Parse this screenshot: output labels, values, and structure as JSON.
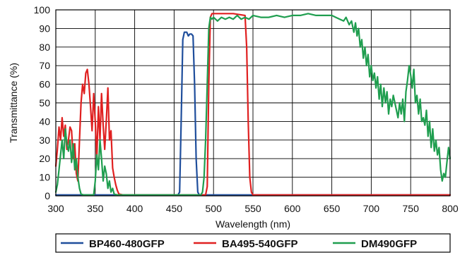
{
  "chart_data": {
    "type": "line",
    "title": "",
    "xlabel": "Wavelength (nm)",
    "ylabel": "Transmittance (%)",
    "xlim": [
      300,
      800
    ],
    "ylim": [
      0,
      100
    ],
    "x_ticks": [
      300,
      350,
      400,
      450,
      500,
      550,
      600,
      650,
      700,
      750,
      800
    ],
    "y_ticks": [
      0,
      10,
      20,
      30,
      40,
      50,
      60,
      70,
      80,
      90,
      100
    ],
    "grid": true,
    "legend_position": "bottom",
    "series": [
      {
        "name": "BP460-480GFP",
        "color": "#1f4e9c",
        "points": [
          [
            300,
            0.5
          ],
          [
            400,
            0.5
          ],
          [
            455,
            0.5
          ],
          [
            457,
            2
          ],
          [
            459,
            40
          ],
          [
            461,
            84
          ],
          [
            463,
            88
          ],
          [
            466,
            88
          ],
          [
            468,
            86
          ],
          [
            470,
            87
          ],
          [
            472,
            87
          ],
          [
            474,
            86
          ],
          [
            476,
            60
          ],
          [
            478,
            20
          ],
          [
            480,
            2
          ],
          [
            482,
            0.5
          ],
          [
            800,
            0.5
          ]
        ]
      },
      {
        "name": "BA495-540GFP",
        "color": "#e02020",
        "points": [
          [
            300,
            16
          ],
          [
            302,
            25
          ],
          [
            304,
            37
          ],
          [
            306,
            30
          ],
          [
            308,
            42
          ],
          [
            310,
            32
          ],
          [
            312,
            38
          ],
          [
            314,
            25
          ],
          [
            316,
            30
          ],
          [
            318,
            37
          ],
          [
            320,
            35
          ],
          [
            322,
            20
          ],
          [
            324,
            28
          ],
          [
            326,
            12
          ],
          [
            328,
            8
          ],
          [
            330,
            30
          ],
          [
            332,
            50
          ],
          [
            334,
            60
          ],
          [
            336,
            55
          ],
          [
            338,
            66
          ],
          [
            340,
            68
          ],
          [
            342,
            60
          ],
          [
            344,
            48
          ],
          [
            346,
            35
          ],
          [
            348,
            55
          ],
          [
            350,
            40
          ],
          [
            352,
            20
          ],
          [
            354,
            48
          ],
          [
            356,
            30
          ],
          [
            358,
            55
          ],
          [
            360,
            38
          ],
          [
            362,
            25
          ],
          [
            364,
            40
          ],
          [
            366,
            58
          ],
          [
            368,
            30
          ],
          [
            370,
            35
          ],
          [
            372,
            15
          ],
          [
            374,
            10
          ],
          [
            376,
            6
          ],
          [
            378,
            3
          ],
          [
            380,
            1
          ],
          [
            385,
            0.5
          ],
          [
            490,
            0.5
          ],
          [
            492,
            5
          ],
          [
            494,
            60
          ],
          [
            496,
            96
          ],
          [
            498,
            98
          ],
          [
            510,
            98
          ],
          [
            525,
            98
          ],
          [
            540,
            97
          ],
          [
            542,
            80
          ],
          [
            544,
            40
          ],
          [
            546,
            10
          ],
          [
            548,
            2
          ],
          [
            550,
            0.5
          ],
          [
            800,
            0.5
          ]
        ]
      },
      {
        "name": "DM490GFP",
        "color": "#1f9e4f",
        "points": [
          [
            300,
            2
          ],
          [
            302,
            6
          ],
          [
            304,
            14
          ],
          [
            306,
            22
          ],
          [
            308,
            30
          ],
          [
            310,
            20
          ],
          [
            312,
            36
          ],
          [
            314,
            28
          ],
          [
            316,
            24
          ],
          [
            318,
            30
          ],
          [
            320,
            18
          ],
          [
            322,
            28
          ],
          [
            324,
            14
          ],
          [
            326,
            20
          ],
          [
            328,
            10
          ],
          [
            330,
            4
          ],
          [
            332,
            1
          ],
          [
            335,
            0.5
          ],
          [
            348,
            0.5
          ],
          [
            350,
            8
          ],
          [
            352,
            22
          ],
          [
            354,
            14
          ],
          [
            356,
            30
          ],
          [
            358,
            20
          ],
          [
            360,
            8
          ],
          [
            362,
            16
          ],
          [
            364,
            12
          ],
          [
            366,
            4
          ],
          [
            368,
            8
          ],
          [
            370,
            2
          ],
          [
            372,
            4
          ],
          [
            374,
            1
          ],
          [
            378,
            0.5
          ],
          [
            484,
            0.5
          ],
          [
            486,
            2
          ],
          [
            488,
            10
          ],
          [
            490,
            30
          ],
          [
            492,
            60
          ],
          [
            494,
            90
          ],
          [
            496,
            96
          ],
          [
            498,
            95
          ],
          [
            500,
            96
          ],
          [
            505,
            94
          ],
          [
            510,
            96
          ],
          [
            515,
            95
          ],
          [
            520,
            96
          ],
          [
            525,
            95
          ],
          [
            530,
            97
          ],
          [
            535,
            95
          ],
          [
            540,
            96
          ],
          [
            545,
            95
          ],
          [
            550,
            97
          ],
          [
            560,
            96
          ],
          [
            570,
            96
          ],
          [
            580,
            97
          ],
          [
            590,
            96
          ],
          [
            600,
            97
          ],
          [
            610,
            97
          ],
          [
            620,
            98
          ],
          [
            630,
            97
          ],
          [
            640,
            97
          ],
          [
            650,
            97
          ],
          [
            655,
            96
          ],
          [
            660,
            95
          ],
          [
            665,
            94
          ],
          [
            668,
            96
          ],
          [
            672,
            92
          ],
          [
            675,
            94
          ],
          [
            678,
            88
          ],
          [
            680,
            93
          ],
          [
            682,
            86
          ],
          [
            684,
            90
          ],
          [
            686,
            80
          ],
          [
            688,
            84
          ],
          [
            690,
            74
          ],
          [
            692,
            80
          ],
          [
            694,
            70
          ],
          [
            696,
            76
          ],
          [
            698,
            64
          ],
          [
            700,
            70
          ],
          [
            702,
            62
          ],
          [
            704,
            66
          ],
          [
            706,
            58
          ],
          [
            708,
            64
          ],
          [
            710,
            52
          ],
          [
            712,
            60
          ],
          [
            714,
            48
          ],
          [
            716,
            58
          ],
          [
            718,
            50
          ],
          [
            720,
            56
          ],
          [
            722,
            44
          ],
          [
            724,
            52
          ],
          [
            726,
            48
          ],
          [
            728,
            54
          ],
          [
            730,
            50
          ],
          [
            732,
            46
          ],
          [
            734,
            42
          ],
          [
            736,
            50
          ],
          [
            738,
            44
          ],
          [
            740,
            52
          ],
          [
            742,
            40
          ],
          [
            744,
            56
          ],
          [
            746,
            62
          ],
          [
            748,
            70
          ],
          [
            750,
            65
          ],
          [
            752,
            58
          ],
          [
            754,
            68
          ],
          [
            756,
            50
          ],
          [
            758,
            54
          ],
          [
            760,
            44
          ],
          [
            762,
            52
          ],
          [
            764,
            40
          ],
          [
            766,
            42
          ],
          [
            768,
            38
          ],
          [
            770,
            46
          ],
          [
            772,
            32
          ],
          [
            774,
            40
          ],
          [
            776,
            26
          ],
          [
            778,
            36
          ],
          [
            780,
            24
          ],
          [
            782,
            30
          ],
          [
            784,
            22
          ],
          [
            786,
            26
          ],
          [
            788,
            14
          ],
          [
            790,
            8
          ],
          [
            792,
            12
          ],
          [
            794,
            10
          ],
          [
            796,
            18
          ],
          [
            798,
            26
          ],
          [
            800,
            20
          ]
        ]
      }
    ]
  }
}
